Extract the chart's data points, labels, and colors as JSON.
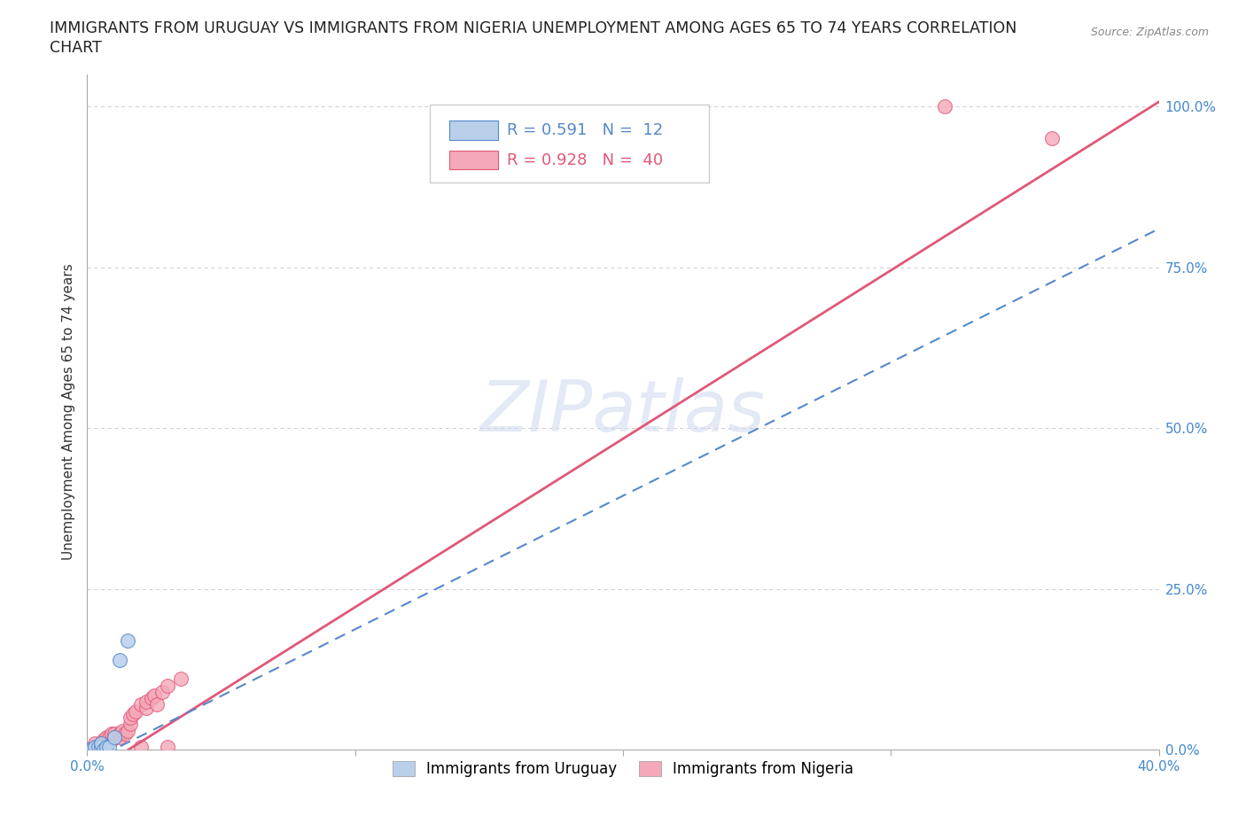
{
  "title_line1": "IMMIGRANTS FROM URUGUAY VS IMMIGRANTS FROM NIGERIA UNEMPLOYMENT AMONG AGES 65 TO 74 YEARS CORRELATION",
  "title_line2": "CHART",
  "source_text": "Source: ZipAtlas.com",
  "ylabel": "Unemployment Among Ages 65 to 74 years",
  "xlim": [
    0.0,
    0.4
  ],
  "ylim": [
    0.0,
    1.05
  ],
  "xticks": [
    0.0,
    0.1,
    0.2,
    0.3,
    0.4
  ],
  "xticklabels": [
    "0.0%",
    "",
    "",
    "",
    "40.0%"
  ],
  "yticks_right": [
    0.0,
    0.25,
    0.5,
    0.75,
    1.0
  ],
  "yticklabels_right": [
    "0.0%",
    "25.0%",
    "50.0%",
    "75.0%",
    "100.0%"
  ],
  "grid_color": "#cccccc",
  "background_color": "#ffffff",
  "watermark": "ZIPatlas",
  "legend_entries": [
    {
      "label": "R = 0.591   N =  12",
      "color": "#b8d0ea"
    },
    {
      "label": "R = 0.928   N =  40",
      "color": "#f4a8b8"
    }
  ],
  "legend_bottom": [
    {
      "label": "Immigrants from Uruguay",
      "color": "#b8d0ea"
    },
    {
      "label": "Immigrants from Nigeria",
      "color": "#f4a8b8"
    }
  ],
  "uruguay_scatter": [
    [
      0.001,
      0.0
    ],
    [
      0.002,
      0.0
    ],
    [
      0.003,
      0.005
    ],
    [
      0.004,
      0.005
    ],
    [
      0.005,
      0.005
    ],
    [
      0.005,
      0.01
    ],
    [
      0.006,
      0.0
    ],
    [
      0.007,
      0.005
    ],
    [
      0.008,
      0.005
    ],
    [
      0.01,
      0.02
    ],
    [
      0.012,
      0.14
    ],
    [
      0.015,
      0.17
    ]
  ],
  "nigeria_scatter": [
    [
      0.001,
      0.0
    ],
    [
      0.002,
      0.0
    ],
    [
      0.003,
      0.005
    ],
    [
      0.003,
      0.01
    ],
    [
      0.004,
      0.005
    ],
    [
      0.004,
      0.0
    ],
    [
      0.005,
      0.01
    ],
    [
      0.005,
      0.005
    ],
    [
      0.006,
      0.005
    ],
    [
      0.006,
      0.015
    ],
    [
      0.007,
      0.01
    ],
    [
      0.007,
      0.02
    ],
    [
      0.008,
      0.015
    ],
    [
      0.008,
      0.02
    ],
    [
      0.009,
      0.015
    ],
    [
      0.009,
      0.025
    ],
    [
      0.01,
      0.02
    ],
    [
      0.01,
      0.025
    ],
    [
      0.012,
      0.02
    ],
    [
      0.012,
      0.025
    ],
    [
      0.013,
      0.03
    ],
    [
      0.014,
      0.025
    ],
    [
      0.015,
      0.03
    ],
    [
      0.016,
      0.04
    ],
    [
      0.016,
      0.05
    ],
    [
      0.017,
      0.055
    ],
    [
      0.018,
      0.06
    ],
    [
      0.02,
      0.005
    ],
    [
      0.02,
      0.07
    ],
    [
      0.022,
      0.065
    ],
    [
      0.022,
      0.075
    ],
    [
      0.024,
      0.08
    ],
    [
      0.025,
      0.085
    ],
    [
      0.026,
      0.07
    ],
    [
      0.028,
      0.09
    ],
    [
      0.03,
      0.005
    ],
    [
      0.03,
      0.1
    ],
    [
      0.035,
      0.11
    ],
    [
      0.32,
      1.0
    ],
    [
      0.36,
      0.95
    ]
  ],
  "uruguay_line_params": [
    0.0,
    0.0,
    0.035,
    0.2
  ],
  "nigeria_line_params": [
    -0.005,
    0.0,
    0.4,
    1.0
  ],
  "uruguay_line_color": "#5588cc",
  "nigeria_line_color": "#e05878",
  "scatter_uruguay_color": "#b8d0ea",
  "scatter_nigeria_color": "#f4a8b8",
  "scatter_size": 130,
  "title_fontsize": 12.5,
  "axis_label_fontsize": 11,
  "tick_fontsize": 11,
  "legend_fontsize": 13,
  "right_tick_color": "#4488cc",
  "bottom_tick_color": "#4488cc"
}
